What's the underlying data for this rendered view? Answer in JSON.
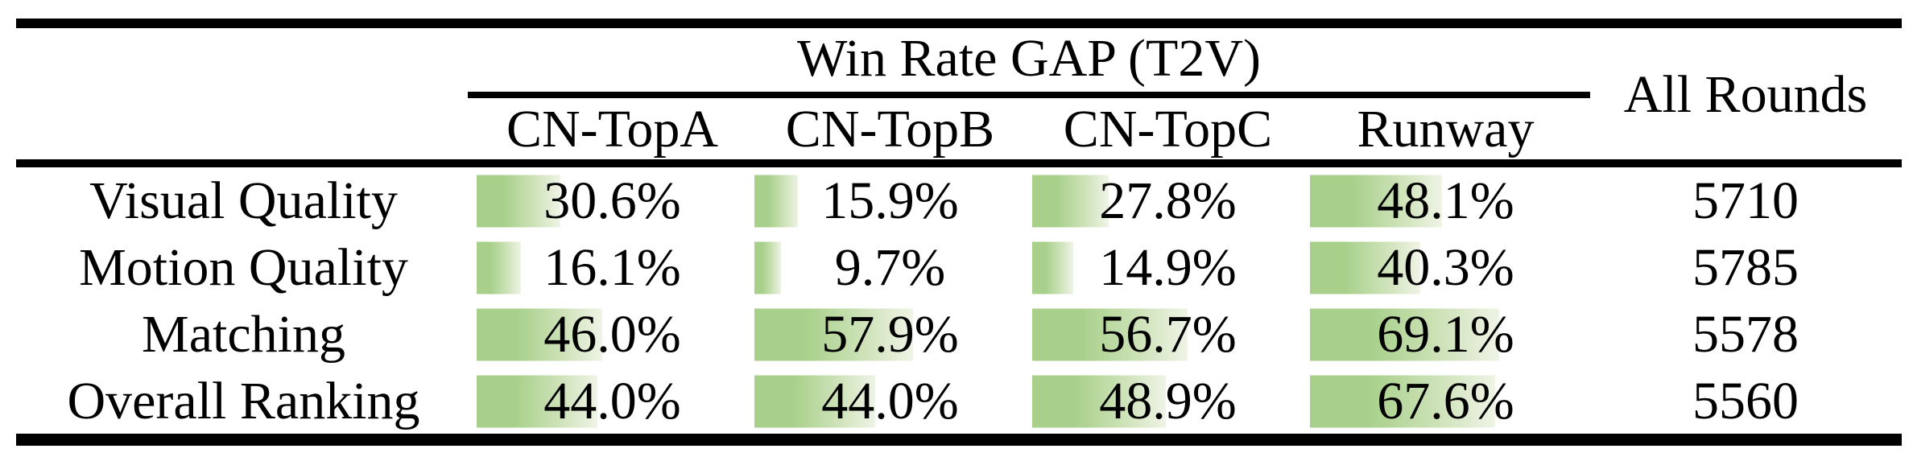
{
  "header": {
    "group_title": "Win Rate GAP (T2V)",
    "all_rounds": "All Rounds",
    "columns": [
      "CN-TopA",
      "CN-TopB",
      "CN-TopC",
      "Runway"
    ]
  },
  "rows": [
    {
      "label": "Visual Quality",
      "cells": [
        {
          "value": 30.6,
          "text": "30.6%"
        },
        {
          "value": 15.9,
          "text": "15.9%"
        },
        {
          "value": 27.8,
          "text": "27.8%"
        },
        {
          "value": 48.1,
          "text": "48.1%"
        }
      ],
      "all_rounds": "5710"
    },
    {
      "label": "Motion Quality",
      "cells": [
        {
          "value": 16.1,
          "text": "16.1%"
        },
        {
          "value": 9.7,
          "text": "9.7%"
        },
        {
          "value": 14.9,
          "text": "14.9%"
        },
        {
          "value": 40.3,
          "text": "40.3%"
        }
      ],
      "all_rounds": "5785"
    },
    {
      "label": "Matching",
      "cells": [
        {
          "value": 46.0,
          "text": "46.0%"
        },
        {
          "value": 57.9,
          "text": "57.9%"
        },
        {
          "value": 56.7,
          "text": "56.7%"
        },
        {
          "value": 69.1,
          "text": "69.1%"
        }
      ],
      "all_rounds": "5578"
    },
    {
      "label": "Overall Ranking",
      "cells": [
        {
          "value": 44.0,
          "text": "44.0%"
        },
        {
          "value": 44.0,
          "text": "44.0%"
        },
        {
          "value": 48.9,
          "text": "48.9%"
        },
        {
          "value": 67.6,
          "text": "67.6%"
        }
      ],
      "all_rounds": "5560"
    }
  ],
  "colors": {
    "bar_green": "#a8d08b",
    "bar_fade": "#eff4e6",
    "rule_black": "#000000",
    "background": "#ffffff"
  }
}
